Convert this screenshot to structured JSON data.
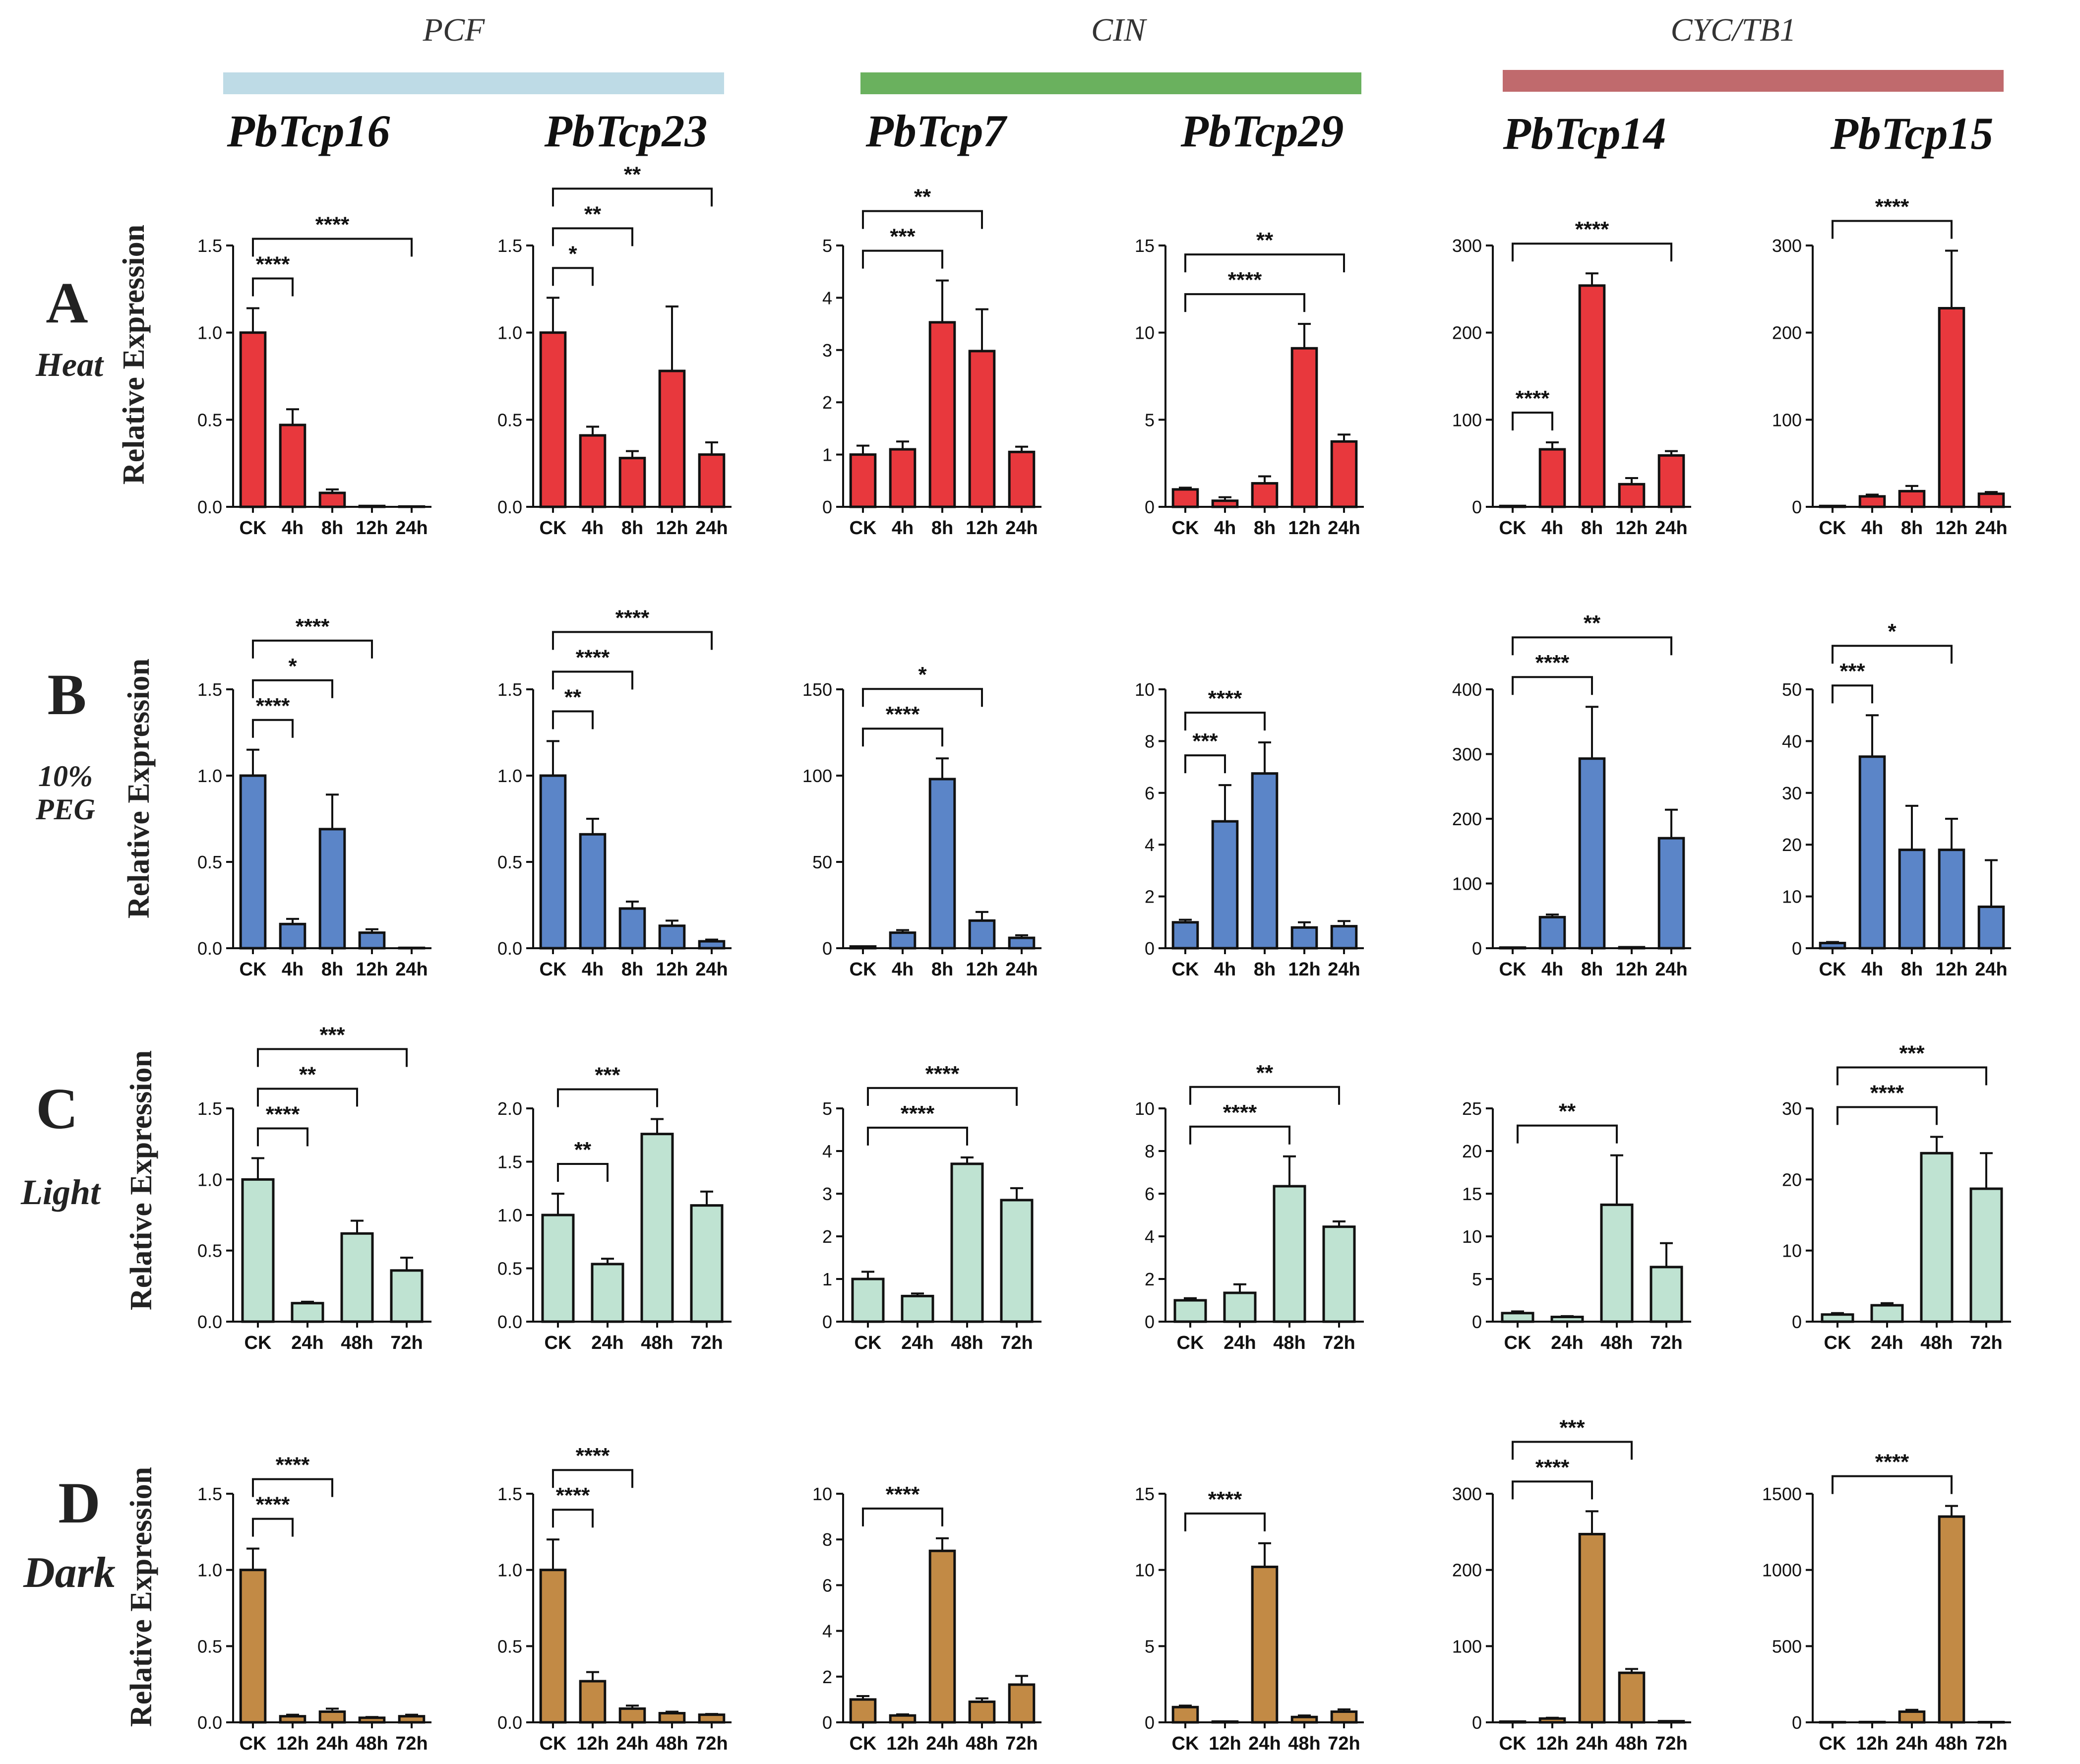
{
  "layout_rows": [
    "Heat",
    "PEG",
    "Light",
    "Dark"
  ],
  "colors": {
    "Heat": "#e8383d",
    "PEG": "#5b85c8",
    "Light": "#bfe3d2",
    "Dark": "#c28a45",
    "PCF": "#bedbe6",
    "CIN": "#6ab15e",
    "CYC/TB1": "#c06a6d"
  },
  "clades": [
    {
      "label": "PCF",
      "color_key": "PCF"
    },
    {
      "label": "CIN",
      "color_key": "CIN"
    },
    {
      "label": "CYC/TB1",
      "color_key": "CYC/TB1"
    }
  ],
  "genes": [
    "PbTcp16",
    "PbTcp23",
    "PbTcp7",
    "PbTcp29",
    "PbTcp14",
    "PbTcp15"
  ],
  "rows": [
    {
      "letter": "A",
      "label": [
        "Heat"
      ],
      "ylabel": "Relative Expression"
    },
    {
      "letter": "B",
      "label": [
        "10%",
        "PEG"
      ],
      "ylabel": "Relative Expression"
    },
    {
      "letter": "C",
      "label": [
        "Light"
      ],
      "ylabel": "Relative Expression"
    },
    {
      "letter": "D",
      "label": [
        "Dark"
      ],
      "ylabel": "Relative Expression"
    }
  ],
  "chart_data": [
    {
      "type": "bar",
      "row": "A",
      "gene": "PbTcp16",
      "categories": [
        "CK",
        "4h",
        "8h",
        "12h",
        "24h"
      ],
      "values": [
        1.0,
        0.47,
        0.08,
        0.005,
        0.002
      ],
      "errors": [
        0.14,
        0.09,
        0.02,
        0.002,
        0.001
      ],
      "ylim": [
        0,
        1.5
      ],
      "yticks": [
        "0.0",
        "0.5",
        "1.0",
        "1.5"
      ],
      "sig": [
        {
          "to": 1,
          "label": "****"
        },
        {
          "to": 4,
          "label": "****"
        }
      ]
    },
    {
      "type": "bar",
      "row": "A",
      "gene": "PbTcp23",
      "categories": [
        "CK",
        "4h",
        "8h",
        "12h",
        "24h"
      ],
      "values": [
        1.0,
        0.41,
        0.28,
        0.78,
        0.3
      ],
      "errors": [
        0.2,
        0.05,
        0.04,
        0.37,
        0.07
      ],
      "ylim": [
        0,
        1.5
      ],
      "yticks": [
        "0.0",
        "0.5",
        "1.0",
        "1.5"
      ],
      "sig": [
        {
          "to": 1,
          "label": "*"
        },
        {
          "to": 2,
          "label": "**"
        },
        {
          "to": 4,
          "label": "**"
        }
      ]
    },
    {
      "type": "bar",
      "row": "A",
      "gene": "PbTcp7",
      "categories": [
        "CK",
        "4h",
        "8h",
        "12h",
        "24h"
      ],
      "values": [
        1.0,
        1.1,
        3.53,
        2.98,
        1.05
      ],
      "errors": [
        0.17,
        0.15,
        0.8,
        0.8,
        0.1
      ],
      "ylim": [
        0,
        5
      ],
      "yticks": [
        "0",
        "1",
        "2",
        "3",
        "4",
        "5"
      ],
      "sig": [
        {
          "to": 2,
          "label": "***"
        },
        {
          "to": 3,
          "label": "**"
        }
      ]
    },
    {
      "type": "bar",
      "row": "A",
      "gene": "PbTcp29",
      "categories": [
        "CK",
        "4h",
        "8h",
        "12h",
        "24h"
      ],
      "values": [
        1.0,
        0.35,
        1.35,
        9.1,
        3.75
      ],
      "errors": [
        0.1,
        0.2,
        0.4,
        1.4,
        0.4
      ],
      "ylim": [
        0,
        15
      ],
      "yticks": [
        "0",
        "5",
        "10",
        "15"
      ],
      "sig": [
        {
          "to": 3,
          "label": "****"
        },
        {
          "to": 4,
          "label": "**"
        }
      ]
    },
    {
      "type": "bar",
      "row": "A",
      "gene": "PbTcp14",
      "categories": [
        "CK",
        "4h",
        "8h",
        "12h",
        "24h"
      ],
      "values": [
        1.0,
        66,
        254,
        26,
        59
      ],
      "errors": [
        0.2,
        8,
        14,
        7,
        5
      ],
      "ylim": [
        0,
        300
      ],
      "yticks": [
        "0",
        "100",
        "200",
        "300"
      ],
      "sig": [
        {
          "to": 1,
          "label": "****"
        },
        {
          "to": 4,
          "label": "****"
        }
      ]
    },
    {
      "type": "bar",
      "row": "A",
      "gene": "PbTcp15",
      "categories": [
        "CK",
        "4h",
        "8h",
        "12h",
        "24h"
      ],
      "values": [
        1.0,
        12,
        18,
        228,
        15
      ],
      "errors": [
        0.2,
        2,
        6,
        66,
        2
      ],
      "ylim": [
        0,
        300
      ],
      "yticks": [
        "0",
        "100",
        "200",
        "300"
      ],
      "sig": [
        {
          "to": 3,
          "label": "****"
        }
      ]
    },
    {
      "type": "bar",
      "row": "B",
      "gene": "PbTcp16",
      "categories": [
        "CK",
        "4h",
        "8h",
        "12h",
        "24h"
      ],
      "values": [
        1.0,
        0.14,
        0.69,
        0.09,
        0.002
      ],
      "errors": [
        0.15,
        0.03,
        0.2,
        0.02,
        0.001
      ],
      "ylim": [
        0,
        1.5
      ],
      "yticks": [
        "0.0",
        "0.5",
        "1.0",
        "1.5"
      ],
      "sig": [
        {
          "to": 1,
          "label": "****"
        },
        {
          "to": 2,
          "label": "*"
        },
        {
          "to": 3,
          "label": "****"
        }
      ]
    },
    {
      "type": "bar",
      "row": "B",
      "gene": "PbTcp23",
      "categories": [
        "CK",
        "4h",
        "8h",
        "12h",
        "24h"
      ],
      "values": [
        1.0,
        0.66,
        0.23,
        0.13,
        0.04
      ],
      "errors": [
        0.2,
        0.09,
        0.04,
        0.03,
        0.01
      ],
      "ylim": [
        0,
        1.5
      ],
      "yticks": [
        "0.0",
        "0.5",
        "1.0",
        "1.5"
      ],
      "sig": [
        {
          "to": 1,
          "label": "**"
        },
        {
          "to": 2,
          "label": "****"
        },
        {
          "to": 4,
          "label": "****"
        }
      ]
    },
    {
      "type": "bar",
      "row": "B",
      "gene": "PbTcp7",
      "categories": [
        "CK",
        "4h",
        "8h",
        "12h",
        "24h"
      ],
      "values": [
        1.0,
        9,
        98,
        16,
        6
      ],
      "errors": [
        0.2,
        1.5,
        12,
        5,
        1.5
      ],
      "ylim": [
        0,
        150
      ],
      "yticks": [
        "0",
        "50",
        "100",
        "150"
      ],
      "sig": [
        {
          "to": 2,
          "label": "****"
        },
        {
          "to": 3,
          "label": "*"
        }
      ]
    },
    {
      "type": "bar",
      "row": "B",
      "gene": "PbTcp29",
      "categories": [
        "CK",
        "4h",
        "8h",
        "12h",
        "24h"
      ],
      "values": [
        1.0,
        4.9,
        6.75,
        0.8,
        0.85
      ],
      "errors": [
        0.1,
        1.4,
        1.2,
        0.2,
        0.2
      ],
      "ylim": [
        0,
        10
      ],
      "yticks": [
        "0",
        "2",
        "4",
        "6",
        "8",
        "10"
      ],
      "sig": [
        {
          "to": 1,
          "label": "***"
        },
        {
          "to": 2,
          "label": "****"
        }
      ]
    },
    {
      "type": "bar",
      "row": "B",
      "gene": "PbTcp14",
      "categories": [
        "CK",
        "4h",
        "8h",
        "12h",
        "24h"
      ],
      "values": [
        1.0,
        48,
        293,
        1.5,
        170
      ],
      "errors": [
        0.2,
        4,
        80,
        0.5,
        44
      ],
      "ylim": [
        0,
        400
      ],
      "yticks": [
        "0",
        "100",
        "200",
        "300",
        "400"
      ],
      "sig": [
        {
          "to": 2,
          "label": "****"
        },
        {
          "to": 4,
          "label": "**"
        }
      ]
    },
    {
      "type": "bar",
      "row": "B",
      "gene": "PbTcp15",
      "categories": [
        "CK",
        "4h",
        "8h",
        "12h",
        "24h"
      ],
      "values": [
        1.0,
        37,
        19,
        19,
        8
      ],
      "errors": [
        0.2,
        8,
        8.5,
        6,
        9
      ],
      "ylim": [
        0,
        50
      ],
      "yticks": [
        "0",
        "10",
        "20",
        "30",
        "40",
        "50"
      ],
      "sig": [
        {
          "to": 1,
          "label": "***"
        },
        {
          "to": 3,
          "label": "*"
        }
      ]
    },
    {
      "type": "bar",
      "row": "C",
      "gene": "PbTcp16",
      "categories": [
        "CK",
        "24h",
        "48h",
        "72h"
      ],
      "values": [
        1.0,
        0.13,
        0.62,
        0.36
      ],
      "errors": [
        0.15,
        0.01,
        0.09,
        0.09
      ],
      "ylim": [
        0,
        1.5
      ],
      "yticks": [
        "0.0",
        "0.5",
        "1.0",
        "1.5"
      ],
      "sig": [
        {
          "to": 1,
          "label": "****"
        },
        {
          "to": 2,
          "label": "**"
        },
        {
          "to": 3,
          "label": "***"
        }
      ]
    },
    {
      "type": "bar",
      "row": "C",
      "gene": "PbTcp23",
      "categories": [
        "CK",
        "24h",
        "48h",
        "72h"
      ],
      "values": [
        1.0,
        0.54,
        1.76,
        1.09
      ],
      "errors": [
        0.2,
        0.05,
        0.14,
        0.13
      ],
      "ylim": [
        0,
        2.0
      ],
      "yticks": [
        "0.0",
        "0.5",
        "1.0",
        "1.5",
        "2.0"
      ],
      "sig": [
        {
          "to": 1,
          "label": "**"
        },
        {
          "to": 2,
          "label": "***"
        }
      ]
    },
    {
      "type": "bar",
      "row": "C",
      "gene": "PbTcp7",
      "categories": [
        "CK",
        "24h",
        "48h",
        "72h"
      ],
      "values": [
        1.0,
        0.6,
        3.7,
        2.85
      ],
      "errors": [
        0.17,
        0.06,
        0.15,
        0.28
      ],
      "ylim": [
        0,
        5
      ],
      "yticks": [
        "0",
        "1",
        "2",
        "3",
        "4",
        "5"
      ],
      "sig": [
        {
          "to": 2,
          "label": "****"
        },
        {
          "to": 3,
          "label": "****"
        }
      ]
    },
    {
      "type": "bar",
      "row": "C",
      "gene": "PbTcp29",
      "categories": [
        "CK",
        "24h",
        "48h",
        "72h"
      ],
      "values": [
        1.0,
        1.35,
        6.35,
        4.45
      ],
      "errors": [
        0.1,
        0.4,
        1.4,
        0.25
      ],
      "ylim": [
        0,
        10
      ],
      "yticks": [
        "0",
        "2",
        "4",
        "6",
        "8",
        "10"
      ],
      "sig": [
        {
          "to": 2,
          "label": "****"
        },
        {
          "to": 3,
          "label": "**"
        }
      ]
    },
    {
      "type": "bar",
      "row": "C",
      "gene": "PbTcp14",
      "categories": [
        "CK",
        "24h",
        "48h",
        "72h"
      ],
      "values": [
        1.0,
        0.55,
        13.7,
        6.4
      ],
      "errors": [
        0.2,
        0.1,
        5.8,
        2.8
      ],
      "ylim": [
        0,
        25
      ],
      "yticks": [
        "0",
        "5",
        "10",
        "15",
        "20",
        "25"
      ],
      "sig": [
        {
          "to": 2,
          "label": "**"
        }
      ]
    },
    {
      "type": "bar",
      "row": "C",
      "gene": "PbTcp15",
      "categories": [
        "CK",
        "24h",
        "48h",
        "72h"
      ],
      "values": [
        1.0,
        2.3,
        23.7,
        18.7
      ],
      "errors": [
        0.2,
        0.3,
        2.3,
        5.0
      ],
      "ylim": [
        0,
        30
      ],
      "yticks": [
        "0",
        "10",
        "20",
        "30"
      ],
      "sig": [
        {
          "to": 2,
          "label": "****"
        },
        {
          "to": 3,
          "label": "***"
        }
      ]
    },
    {
      "type": "bar",
      "row": "D",
      "gene": "PbTcp16",
      "categories": [
        "CK",
        "12h",
        "24h",
        "48h",
        "72h"
      ],
      "values": [
        1.0,
        0.04,
        0.07,
        0.03,
        0.04
      ],
      "errors": [
        0.14,
        0.01,
        0.02,
        0.005,
        0.01
      ],
      "ylim": [
        0,
        1.5
      ],
      "yticks": [
        "0.0",
        "0.5",
        "1.0",
        "1.5"
      ],
      "sig": [
        {
          "to": 1,
          "label": "****"
        },
        {
          "to": 2,
          "label": "****"
        }
      ]
    },
    {
      "type": "bar",
      "row": "D",
      "gene": "PbTcp23",
      "categories": [
        "CK",
        "12h",
        "24h",
        "48h",
        "72h"
      ],
      "values": [
        1.0,
        0.27,
        0.09,
        0.06,
        0.05
      ],
      "errors": [
        0.2,
        0.06,
        0.02,
        0.01,
        0.005
      ],
      "ylim": [
        0,
        1.5
      ],
      "yticks": [
        "0.0",
        "0.5",
        "1.0",
        "1.5"
      ],
      "sig": [
        {
          "to": 1,
          "label": "****"
        },
        {
          "to": 2,
          "label": "****"
        }
      ]
    },
    {
      "type": "bar",
      "row": "D",
      "gene": "PbTcp7",
      "categories": [
        "CK",
        "12h",
        "24h",
        "48h",
        "72h"
      ],
      "values": [
        1.0,
        0.3,
        7.5,
        0.9,
        1.65
      ],
      "errors": [
        0.15,
        0.05,
        0.55,
        0.15,
        0.38
      ],
      "ylim": [
        0,
        10
      ],
      "yticks": [
        "0",
        "2",
        "4",
        "6",
        "8",
        "10"
      ],
      "sig": [
        {
          "to": 2,
          "label": "****"
        }
      ]
    },
    {
      "type": "bar",
      "row": "D",
      "gene": "PbTcp29",
      "categories": [
        "CK",
        "12h",
        "24h",
        "48h",
        "72h"
      ],
      "values": [
        1.0,
        0.05,
        10.2,
        0.35,
        0.7
      ],
      "errors": [
        0.1,
        0.01,
        1.55,
        0.1,
        0.15
      ],
      "ylim": [
        0,
        15
      ],
      "yticks": [
        "0",
        "5",
        "10",
        "15"
      ],
      "sig": [
        {
          "to": 2,
          "label": "****"
        }
      ]
    },
    {
      "type": "bar",
      "row": "D",
      "gene": "PbTcp14",
      "categories": [
        "CK",
        "12h",
        "24h",
        "48h",
        "72h"
      ],
      "values": [
        1.0,
        5,
        247,
        65,
        1.5
      ],
      "errors": [
        0.2,
        1,
        30,
        5,
        0.5
      ],
      "ylim": [
        0,
        300
      ],
      "yticks": [
        "0",
        "100",
        "200",
        "300"
      ],
      "sig": [
        {
          "to": 2,
          "label": "****"
        },
        {
          "to": 3,
          "label": "***"
        }
      ]
    },
    {
      "type": "bar",
      "row": "D",
      "gene": "PbTcp15",
      "categories": [
        "CK",
        "12h",
        "24h",
        "48h",
        "72h"
      ],
      "values": [
        1.0,
        2,
        70,
        1350,
        1.5
      ],
      "errors": [
        0.2,
        0.5,
        12,
        70,
        0.5
      ],
      "ylim": [
        0,
        1500
      ],
      "yticks": [
        "0",
        "500",
        "1000",
        "1500"
      ],
      "sig": [
        {
          "to": 3,
          "label": "****"
        }
      ]
    }
  ]
}
